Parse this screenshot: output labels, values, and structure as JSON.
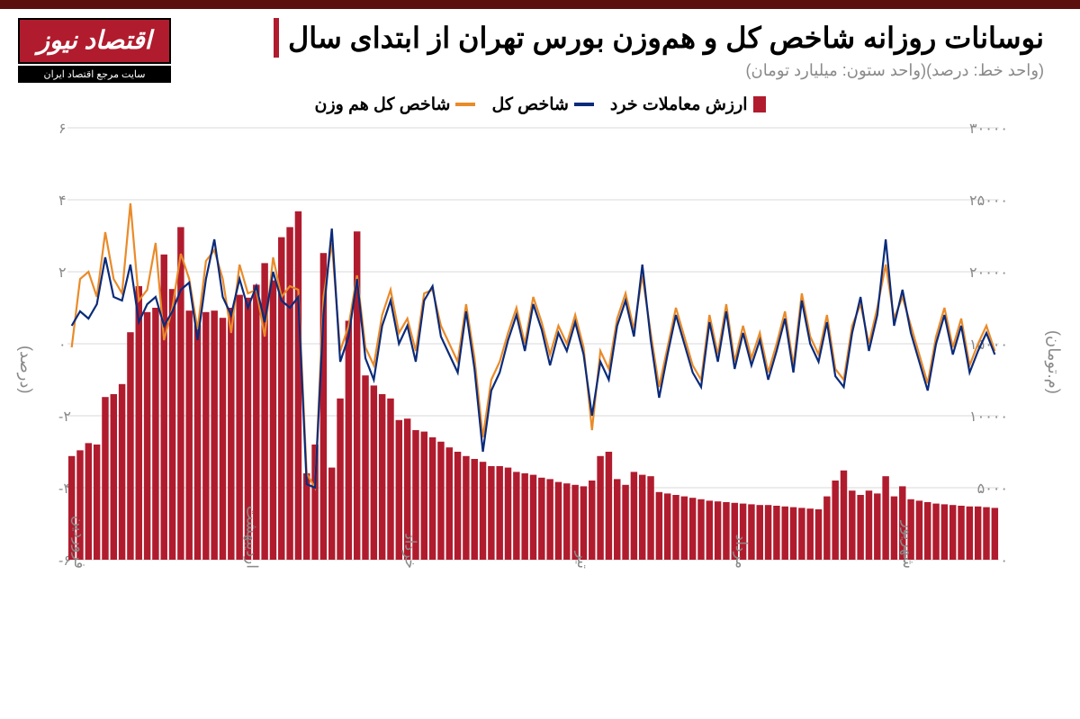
{
  "logo": {
    "name": "اقتصاد نیوز",
    "tagline": "سایت مرجع اقتصاد ایران"
  },
  "title": "نوسانات روزانه شاخص کل و هم‌وزن بورس تهران از ابتدای سال",
  "subtitle": "(واحد خط: درصد)(واحد ستون: میلیارد تومان)",
  "legend": {
    "bars": {
      "label": "ارزش معاملات خرد",
      "color": "#b01c2e"
    },
    "line_total": {
      "label": "شاخص کل",
      "color": "#0b2b7a"
    },
    "line_equal": {
      "label": "شاخص کل هم وزن",
      "color": "#e98b2a"
    }
  },
  "chart": {
    "type": "bar+line",
    "background_color": "#ffffff",
    "grid_color": "#d9d9d9",
    "axis_text_color": "#8a8a8a",
    "left_axis": {
      "label": "(درصد)",
      "min": -6,
      "max": 6,
      "step": 2,
      "ticks": [
        "۶",
        "۴",
        "۲",
        "۰",
        "۲-",
        "۴-",
        "۶-"
      ]
    },
    "right_axis": {
      "label": "(م.تومان)",
      "min": 0,
      "max": 30000,
      "step": 5000,
      "ticks": [
        "۳۰۰۰۰",
        "۲۵۰۰۰",
        "۲۰۰۰۰",
        "۱۵۰۰۰",
        "۱۰۰۰۰",
        "۵۰۰۰",
        "۰"
      ]
    },
    "x_months": [
      "فروردین",
      "اردیبهشت",
      "خرداد",
      "تیر",
      "مرداد",
      "شهریور"
    ],
    "x_month_positions": [
      0,
      0.185,
      0.355,
      0.54,
      0.71,
      0.89
    ],
    "bars_values": [
      7200,
      7600,
      8100,
      8000,
      11300,
      11500,
      12200,
      15800,
      19000,
      17200,
      17500,
      21200,
      18800,
      23100,
      17300,
      16300,
      17200,
      17300,
      16800,
      17500,
      18400,
      18200,
      19100,
      20600,
      19400,
      22400,
      23100,
      24200,
      6000,
      8000,
      21300,
      6400,
      11200,
      16600,
      22800,
      12800,
      12100,
      11500,
      11200,
      9700,
      9800,
      9000,
      8900,
      8500,
      8200,
      7800,
      7500,
      7200,
      7000,
      6800,
      6500,
      6500,
      6400,
      6100,
      6000,
      5900,
      5700,
      5600,
      5400,
      5300,
      5200,
      5100,
      5500,
      7200,
      7500,
      5600,
      5200,
      6100,
      5900,
      5800,
      4700,
      4600,
      4500,
      4400,
      4300,
      4200,
      4100,
      4050,
      4000,
      3950,
      3900,
      3850,
      3800,
      3800,
      3750,
      3700,
      3650,
      3600,
      3550,
      3500,
      4400,
      5500,
      6200,
      4800,
      4500,
      4800,
      4600,
      5800,
      4400,
      5100,
      4200,
      4100,
      4000,
      3900,
      3850,
      3800,
      3750,
      3700,
      3700,
      3650,
      3600
    ],
    "line_total_values": [
      0.5,
      0.9,
      0.7,
      1.1,
      2.4,
      1.3,
      1.2,
      2.2,
      0.6,
      1.1,
      1.3,
      0.5,
      0.9,
      1.5,
      1.7,
      0.1,
      1.8,
      2.9,
      1.3,
      0.8,
      1.8,
      1.0,
      1.6,
      0.6,
      2.0,
      1.2,
      1.0,
      1.3,
      -3.9,
      -4.0,
      0.8,
      3.2,
      -0.5,
      0.2,
      1.8,
      -0.4,
      -1.0,
      0.5,
      1.2,
      0.0,
      0.5,
      -0.5,
      1.2,
      1.6,
      0.2,
      -0.3,
      -0.8,
      0.9,
      -0.7,
      -3.0,
      -1.3,
      -0.8,
      0.1,
      0.8,
      -0.2,
      1.1,
      0.4,
      -0.6,
      0.3,
      -0.2,
      0.6,
      -0.3,
      -2.0,
      -0.5,
      -1.0,
      0.5,
      1.2,
      0.2,
      2.2,
      0.1,
      -1.5,
      -0.3,
      0.8,
      0.0,
      -0.8,
      -1.2,
      0.6,
      -0.5,
      0.9,
      -0.7,
      0.3,
      -0.6,
      0.1,
      -1.0,
      -0.2,
      0.7,
      -0.8,
      1.2,
      0.0,
      -0.5,
      0.6,
      -0.9,
      -1.2,
      0.3,
      1.3,
      -0.2,
      0.8,
      2.9,
      0.5,
      1.5,
      0.3,
      -0.5,
      -1.3,
      0.0,
      0.8,
      -0.3,
      0.5,
      -0.8,
      -0.2,
      0.3,
      -0.3
    ],
    "line_equal_values": [
      -0.1,
      1.8,
      2.0,
      1.3,
      3.1,
      1.8,
      1.4,
      3.9,
      1.2,
      1.5,
      2.8,
      0.1,
      1.0,
      2.5,
      1.8,
      0.4,
      2.3,
      2.6,
      1.8,
      0.3,
      2.2,
      1.4,
      1.5,
      0.2,
      2.4,
      1.3,
      1.6,
      1.5,
      -3.6,
      -4.0,
      1.3,
      2.8,
      -0.2,
      0.5,
      1.9,
      -0.1,
      -0.6,
      0.8,
      1.5,
      0.3,
      0.7,
      -0.2,
      1.4,
      1.5,
      0.5,
      0.0,
      -0.5,
      1.1,
      -0.4,
      -2.6,
      -1.0,
      -0.5,
      0.3,
      1.0,
      0.0,
      1.3,
      0.6,
      -0.3,
      0.5,
      0.0,
      0.8,
      -0.1,
      -2.4,
      -0.2,
      -0.7,
      0.7,
      1.4,
      0.4,
      1.9,
      0.3,
      -1.2,
      -0.1,
      1.0,
      0.2,
      -0.6,
      -1.0,
      0.8,
      -0.3,
      1.1,
      -0.5,
      0.5,
      -0.4,
      0.3,
      -0.8,
      0.0,
      0.9,
      -0.6,
      1.4,
      0.2,
      -0.3,
      0.8,
      -0.7,
      -1.0,
      0.5,
      1.1,
      0.0,
      1.0,
      2.2,
      0.7,
      1.3,
      0.5,
      -0.3,
      -1.1,
      0.2,
      1.0,
      -0.1,
      0.7,
      -0.6,
      0.0,
      0.5,
      -0.2
    ]
  },
  "colors": {
    "header_band": "#5b0f0f",
    "logo_red": "#b01c2e"
  }
}
